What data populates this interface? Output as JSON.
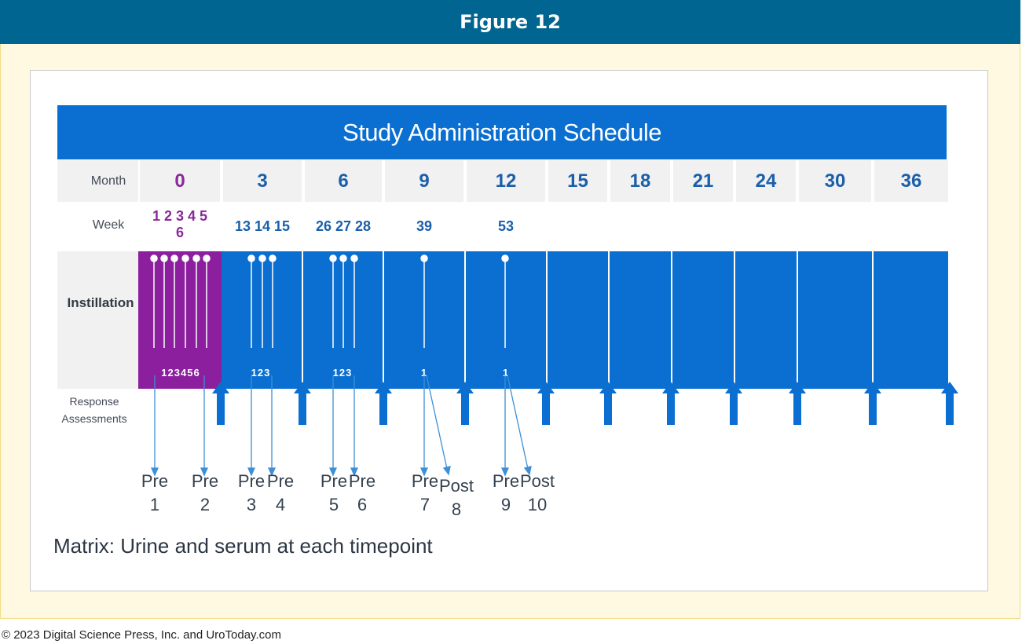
{
  "figure_title": "Figure 12",
  "schedule_title": "Study Administration Schedule",
  "row_labels": {
    "month": "Month",
    "week": "Week",
    "instillation": "Instillation",
    "response_line1": "Response",
    "response_line2": "Assessments"
  },
  "months": [
    "0",
    "3",
    "6",
    "9",
    "12",
    "15",
    "18",
    "21",
    "24",
    "30",
    "36"
  ],
  "weeks": {
    "m0_line1": "1 2 3 4 5",
    "m0_line2": "6",
    "m3": "13 14 15",
    "m6": "26 27 28",
    "m9": "39",
    "m12": "53"
  },
  "instillation_counts": {
    "m0": "123456",
    "m3": "123",
    "m6": "123",
    "m9": "1",
    "m12": "1"
  },
  "assessments": [
    {
      "word": "Pre",
      "num": "1"
    },
    {
      "word": "Pre",
      "num": "2"
    },
    {
      "word": "Pre",
      "num": "3"
    },
    {
      "word": "Pre",
      "num": "4"
    },
    {
      "word": "Pre",
      "num": "5"
    },
    {
      "word": "Pre",
      "num": "6"
    },
    {
      "word": "Pre",
      "num": "7"
    },
    {
      "word": "Post",
      "num": "8"
    },
    {
      "word": "Pre",
      "num": "9"
    },
    {
      "word": "Post",
      "num": "10"
    }
  ],
  "matrix_note": "Matrix: Urine and serum at each timepoint",
  "footer": "© 2023 Digital Science Press, Inc. and UroToday.com",
  "colors": {
    "header_bg": "#006691",
    "frame_bg": "#fff9e1",
    "blue": "#0a6fd0",
    "purple": "#8b1f9e",
    "arrow_blue": "#3d8fd6"
  }
}
